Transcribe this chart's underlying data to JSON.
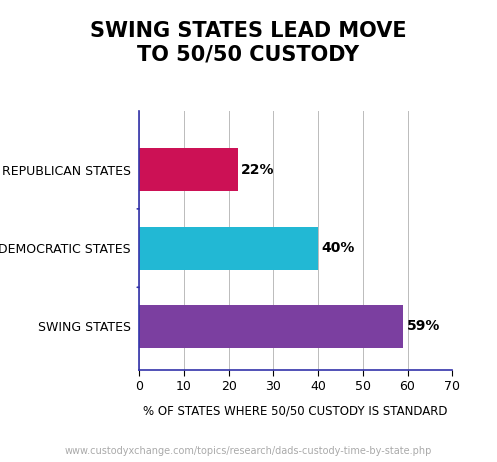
{
  "title": "SWING STATES LEAD MOVE\nTO 50/50 CUSTODY",
  "categories": [
    "REPUBLICAN STATES",
    "DEMOCRATIC STATES",
    "SWING STATES"
  ],
  "values": [
    22,
    40,
    59
  ],
  "bar_colors": [
    "#cc1155",
    "#22b8d4",
    "#7b3fa0"
  ],
  "bar_labels": [
    "22%",
    "40%",
    "59%"
  ],
  "xlabel": "% OF STATES WHERE 50/50 CUSTODY IS STANDARD",
  "xlim": [
    0,
    70
  ],
  "xticks": [
    0,
    10,
    20,
    30,
    40,
    50,
    60,
    70
  ],
  "footnote": "www.custodyxchange.com/topics/research/dads-custody-time-by-state.php",
  "background_color": "#ffffff",
  "title_fontsize": 15,
  "label_fontsize": 9,
  "tick_fontsize": 9,
  "xlabel_fontsize": 8.5,
  "footnote_fontsize": 7,
  "bar_height": 0.55
}
